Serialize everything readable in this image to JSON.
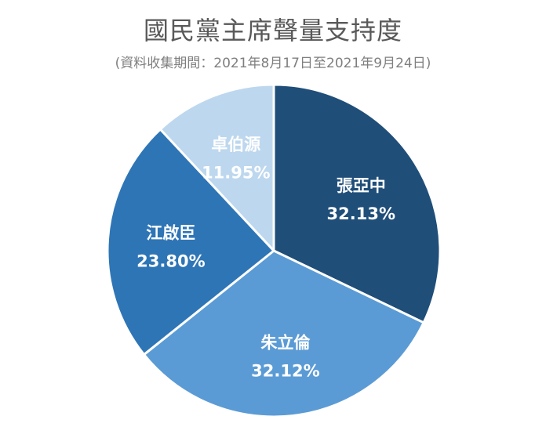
{
  "header": {
    "title": "國民黨主席聲量支持度",
    "subtitle": "(資料收集期間：2021年8月17日至2021年9月24日)"
  },
  "chart_data": {
    "type": "pie",
    "title": "國民黨主席聲量支持度",
    "subtitle": "(資料收集期間：2021年8月17日至2021年9月24日)",
    "slices": [
      {
        "name": "張亞中",
        "value": 32.13,
        "label": "32.13%",
        "color": "#1f4e79",
        "text_color": "#ffffff"
      },
      {
        "name": "朱立倫",
        "value": 32.12,
        "label": "32.12%",
        "color": "#5b9bd5",
        "text_color": "#ffffff"
      },
      {
        "name": "江啟臣",
        "value": 23.8,
        "label": "23.80%",
        "color": "#2e75b6",
        "text_color": "#ffffff"
      },
      {
        "name": "卓伯源",
        "value": 11.95,
        "label": "11.95%",
        "color": "#bdd7ee",
        "text_color": "#ffffff"
      }
    ],
    "legend": "none",
    "start_angle": "12 o'clock, clockwise"
  }
}
